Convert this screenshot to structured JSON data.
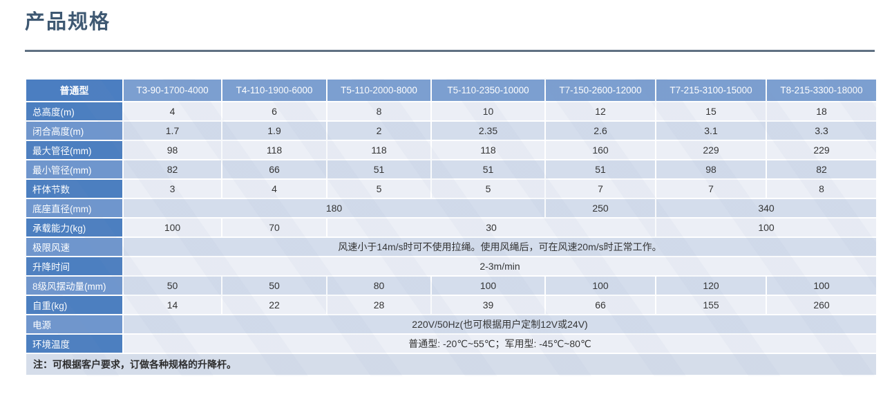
{
  "page": {
    "title": "产品规格"
  },
  "colors": {
    "title": "#3e5872",
    "rule": "#516274",
    "header_corner_bg": "#4b7ec1",
    "header_model_bg": "#7c9fd0",
    "row_label_dark_bg": "#4c7fc0",
    "row_label_light_bg": "#6f96cd",
    "band_light_bg": "#eceff6",
    "band_blue_bg": "#d4ddec",
    "note_bg": "#d5ddea"
  },
  "table": {
    "columns": [
      "普通型",
      "T3-90-1700-4000",
      "T4-110-1900-6000",
      "T5-110-2000-8000",
      "T5-110-2350-10000",
      "T7-150-2600-12000",
      "T7-215-3100-15000",
      "T8-215-3300-18000"
    ],
    "rows": [
      {
        "label": "总高度(m)",
        "cells": [
          {
            "v": "4"
          },
          {
            "v": "6"
          },
          {
            "v": "8"
          },
          {
            "v": "10"
          },
          {
            "v": "12"
          },
          {
            "v": "15"
          },
          {
            "v": "18"
          }
        ]
      },
      {
        "label": "闭合高度(m)",
        "cells": [
          {
            "v": "1.7"
          },
          {
            "v": "1.9"
          },
          {
            "v": "2"
          },
          {
            "v": "2.35"
          },
          {
            "v": "2.6"
          },
          {
            "v": "3.1"
          },
          {
            "v": "3.3"
          }
        ]
      },
      {
        "label": "最大管径(mm)",
        "cells": [
          {
            "v": "98"
          },
          {
            "v": "118"
          },
          {
            "v": "118"
          },
          {
            "v": "118"
          },
          {
            "v": "160"
          },
          {
            "v": "229"
          },
          {
            "v": "229"
          }
        ]
      },
      {
        "label": "最小管径(mm)",
        "cells": [
          {
            "v": "82"
          },
          {
            "v": "66"
          },
          {
            "v": "51"
          },
          {
            "v": "51"
          },
          {
            "v": "51"
          },
          {
            "v": "98"
          },
          {
            "v": "82"
          }
        ]
      },
      {
        "label": "杆体节数",
        "cells": [
          {
            "v": "3"
          },
          {
            "v": "4"
          },
          {
            "v": "5"
          },
          {
            "v": "5"
          },
          {
            "v": "7"
          },
          {
            "v": "7"
          },
          {
            "v": "8"
          }
        ]
      },
      {
        "label": "底座直径(mm)",
        "cells": [
          {
            "v": "180",
            "span": 4
          },
          {
            "v": "250"
          },
          {
            "v": "340",
            "span": 2
          }
        ]
      },
      {
        "label": "承载能力(kg)",
        "cells": [
          {
            "v": "100"
          },
          {
            "v": "70"
          },
          {
            "v": "30",
            "span": 3
          },
          {
            "v": "100",
            "span": 2
          }
        ]
      },
      {
        "label": "极限风速",
        "cells": [
          {
            "v": "风速小于14m/s时可不使用拉绳。使用风绳后，可在风速20m/s时正常工作。",
            "span": 7
          }
        ]
      },
      {
        "label": "升降时间",
        "cells": [
          {
            "v": "2-3m/min",
            "span": 7
          }
        ]
      },
      {
        "label": "8级风摆动量(mm)",
        "cells": [
          {
            "v": "50"
          },
          {
            "v": "50"
          },
          {
            "v": "80"
          },
          {
            "v": "100"
          },
          {
            "v": "100"
          },
          {
            "v": "120"
          },
          {
            "v": "100"
          }
        ]
      },
      {
        "label": "自重(kg)",
        "cells": [
          {
            "v": "14"
          },
          {
            "v": "22"
          },
          {
            "v": "28"
          },
          {
            "v": "39"
          },
          {
            "v": "66"
          },
          {
            "v": "155"
          },
          {
            "v": "260"
          }
        ]
      },
      {
        "label": "电源",
        "cells": [
          {
            "v": "220V/50Hz(也可根据用户定制12V或24V)",
            "span": 7
          }
        ]
      },
      {
        "label": "环境温度",
        "cells": [
          {
            "v": "普通型: -20℃~55℃；军用型: -45℃~80℃",
            "span": 7
          }
        ]
      }
    ],
    "note": "注：可根据客户要求，订做各种规格的升降杆。"
  }
}
